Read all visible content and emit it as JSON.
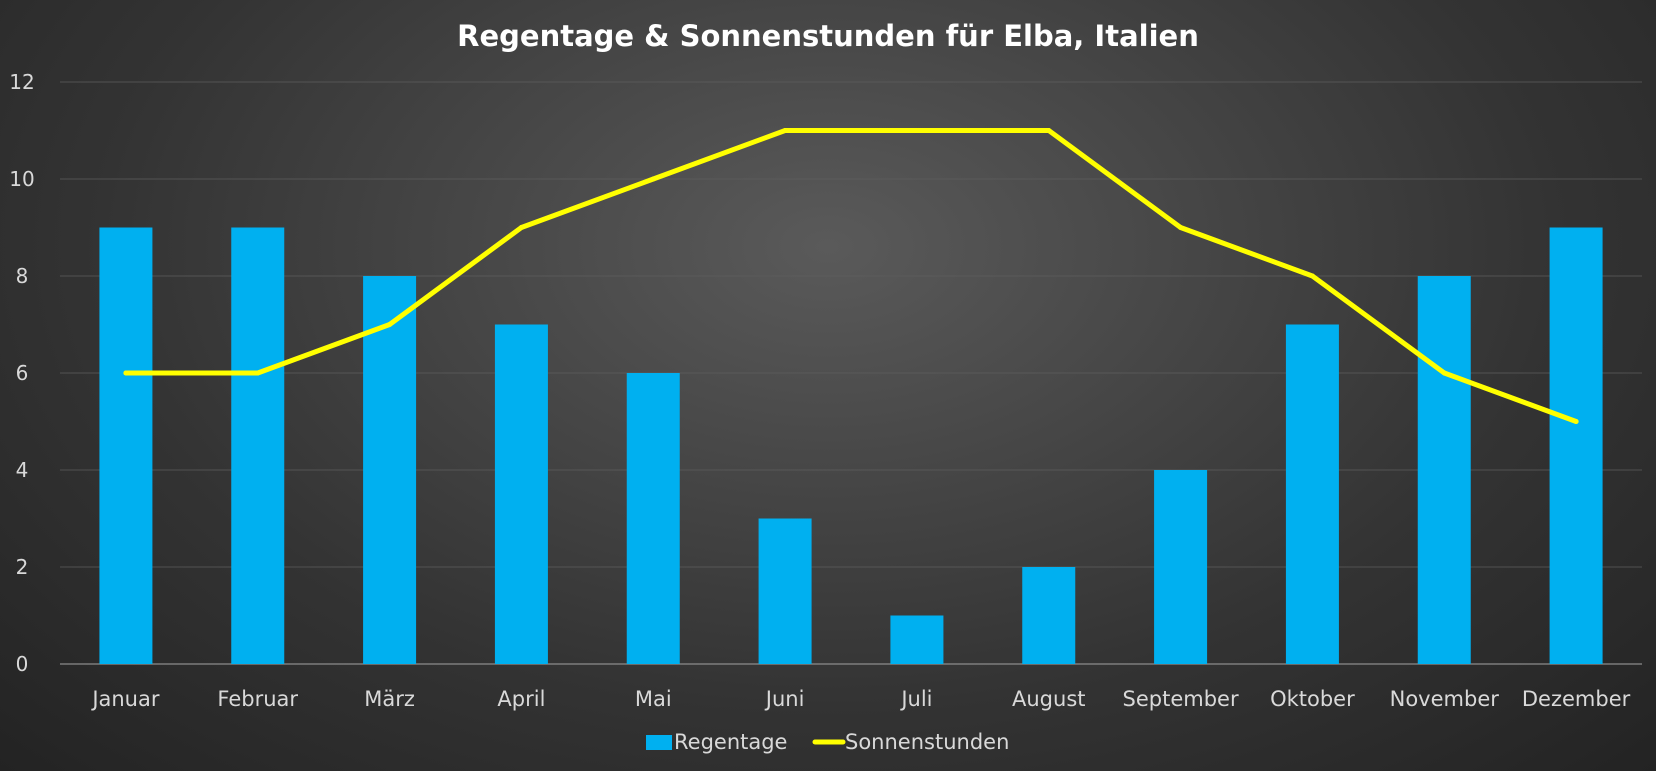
{
  "chart_data": {
    "type": "bar",
    "title": "Regentage & Sonnenstunden für Elba, Italien",
    "xlabel": "",
    "ylabel": "",
    "ylim": [
      0,
      12
    ],
    "yticks": [
      "0",
      "2",
      "4",
      "6",
      "8",
      "10",
      "12"
    ],
    "grid": true,
    "legend_position": "bottom-center",
    "categories": [
      "Januar",
      "Februar",
      "März",
      "April",
      "Mai",
      "Juni",
      "Juli",
      "August",
      "September",
      "Oktober",
      "November",
      "Dezember"
    ],
    "series": [
      {
        "name": "Regentage",
        "type": "bar",
        "color": "#00b0f0",
        "values": [
          9,
          9,
          8,
          7,
          6,
          3,
          1,
          2,
          4,
          7,
          8,
          9
        ]
      },
      {
        "name": "Sonnenstunden",
        "type": "line",
        "color": "#ffff00",
        "values": [
          6,
          6,
          7,
          9,
          10,
          11,
          11,
          11,
          9,
          8,
          6,
          5
        ]
      }
    ]
  }
}
